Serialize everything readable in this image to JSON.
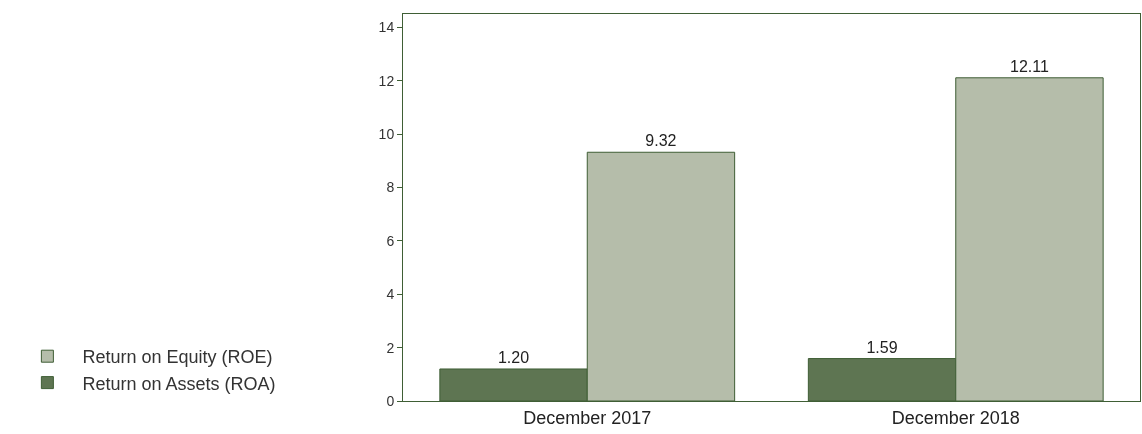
{
  "chart_data": {
    "type": "bar",
    "categories": [
      "December 2017",
      "December 2018"
    ],
    "series": [
      {
        "name": "Return on Assets (ROA)",
        "color": "#5e7552",
        "values": [
          1.2,
          1.59
        ],
        "value_labels": [
          "1.20",
          "1.59"
        ]
      },
      {
        "name": "Return on Equity (ROE)",
        "color": "#b5bdaa",
        "values": [
          9.32,
          12.11
        ],
        "value_labels": [
          "9.32",
          "12.11"
        ]
      }
    ],
    "ylim": [
      0,
      14.5
    ],
    "yticks": [
      0,
      2,
      4,
      6,
      8,
      10,
      12,
      14
    ],
    "legend": "bottom left"
  }
}
